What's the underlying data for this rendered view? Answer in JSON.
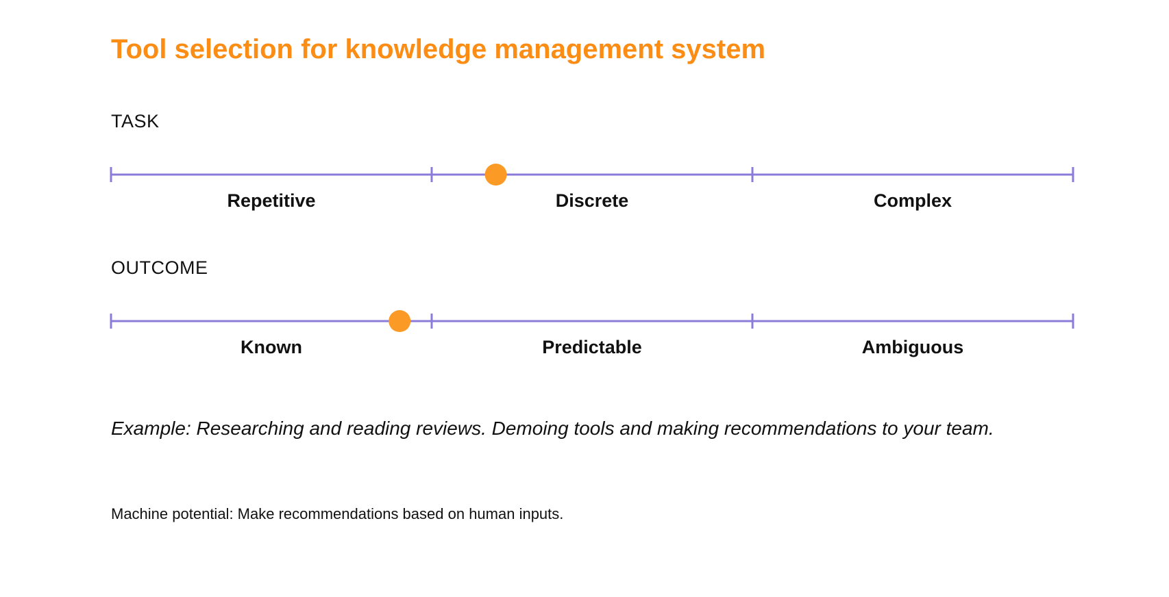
{
  "title": "Tool selection for knowledge management system",
  "colors": {
    "accent": "#fb8c14",
    "marker": "#fb9a24",
    "scale_line": "#8a7cd8",
    "text": "#111111"
  },
  "task": {
    "label": "TASK",
    "categories": [
      "Repetitive",
      "Discrete",
      "Complex"
    ],
    "marker_value": 1.2
  },
  "outcome": {
    "label": "OUTCOME",
    "categories": [
      "Known",
      "Predictable",
      "Ambiguous"
    ],
    "marker_value": 0.9
  },
  "example": "Example: Researching and reading reviews. Demoing tools and making recommendations to your team.",
  "machine_potential": "Machine potential: Make recommendations based on human inputs."
}
